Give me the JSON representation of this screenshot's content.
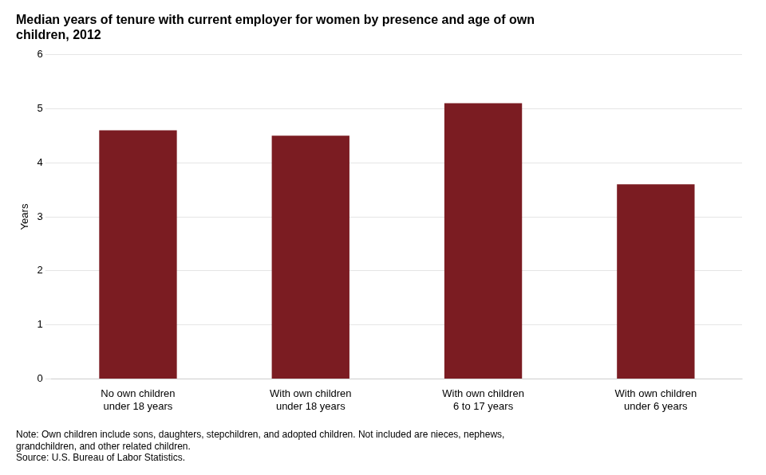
{
  "chart_data": {
    "type": "bar",
    "title": "Median years of tenure with current employer for women by presence and age of own\nchildren, 2012",
    "categories": [
      "No own children\nunder 18 years",
      "With own children\nunder 18 years",
      "With own children\n6 to 17 years",
      "With own children\nunder 6 years"
    ],
    "values": [
      4.6,
      4.5,
      5.1,
      3.6
    ],
    "color": "#7B1C22",
    "ylabel": "Years",
    "ylim": [
      0,
      6
    ],
    "yticks": [
      0,
      1,
      2,
      3,
      4,
      5,
      6
    ],
    "grid": true,
    "annotations": [
      "Note: Own children include sons, daughters, stepchildren, and adopted children. Not included are nieces, nephews,",
      "grandchildren, and other related children.",
      "Source: U.S. Bureau of Labor Statistics."
    ]
  }
}
